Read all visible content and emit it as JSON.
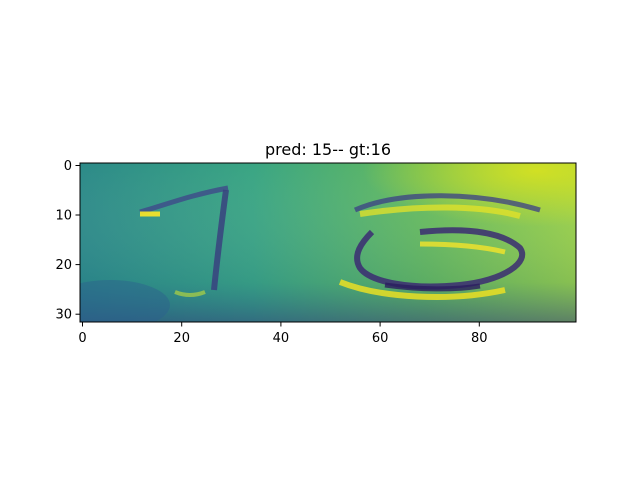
{
  "chart_data": {
    "type": "heatmap",
    "title": "pred: 15-- gt:16",
    "image_width": 100,
    "image_height": 32,
    "xlim": [
      -0.5,
      99.5
    ],
    "ylim": [
      31.5,
      -0.5
    ],
    "x_ticks": [
      0,
      20,
      40,
      60,
      80
    ],
    "y_ticks": [
      0,
      10,
      20,
      30
    ],
    "x_tick_labels": [
      "0",
      "20",
      "40",
      "60",
      "80"
    ],
    "y_tick_labels": [
      "0",
      "10",
      "20",
      "30"
    ],
    "colormap": "viridis",
    "grid": false,
    "colors": {
      "background": "#2a9b84",
      "dark_stroke": "#3b2b72",
      "bright_stroke": "#fde725",
      "light_region": "#9fd34b"
    },
    "content": {
      "digit_one": "1",
      "digit_six": "6"
    }
  }
}
